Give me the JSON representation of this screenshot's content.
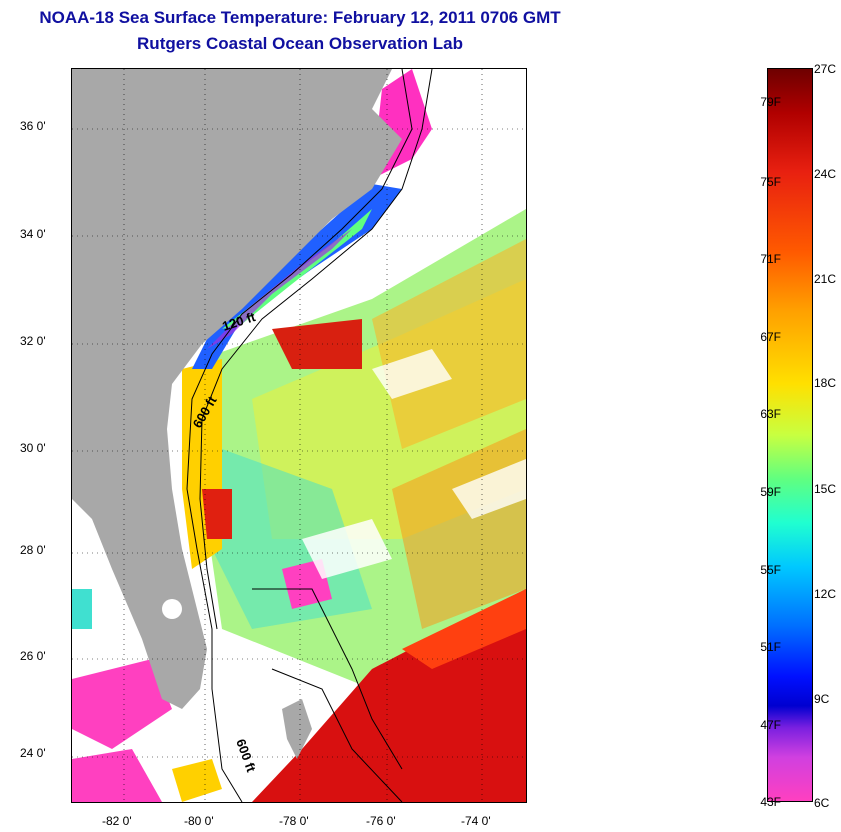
{
  "title": {
    "line1": "NOAA-18 Sea Surface Temperature:  February 12, 2011 0706 GMT",
    "line2": "Rutgers Coastal Ocean Observation Lab"
  },
  "map": {
    "latitude_labels": [
      "36 0'",
      "34 0'",
      "32 0'",
      "30 0'",
      "28 0'",
      "26 0'",
      "24 0'"
    ],
    "longitude_labels": [
      "-82 0'",
      "-80 0'",
      "-78 0'",
      "-76 0'",
      "-74 0'"
    ],
    "contour_labels": [
      "120 ft",
      "600 ft",
      "600 ft"
    ],
    "colors": {
      "land": "#a8a8a8",
      "cloud": "#ffffff",
      "cold": "#ff30c0",
      "warm": "#d81010"
    }
  },
  "colorbar": {
    "fahrenheit_labels": [
      "79F",
      "75F",
      "71F",
      "67F",
      "63F",
      "59F",
      "55F",
      "51F",
      "47F",
      "43F"
    ],
    "celsius_labels": [
      "27C",
      "24C",
      "21C",
      "18C",
      "15C",
      "12C",
      "9C",
      "6C"
    ]
  }
}
